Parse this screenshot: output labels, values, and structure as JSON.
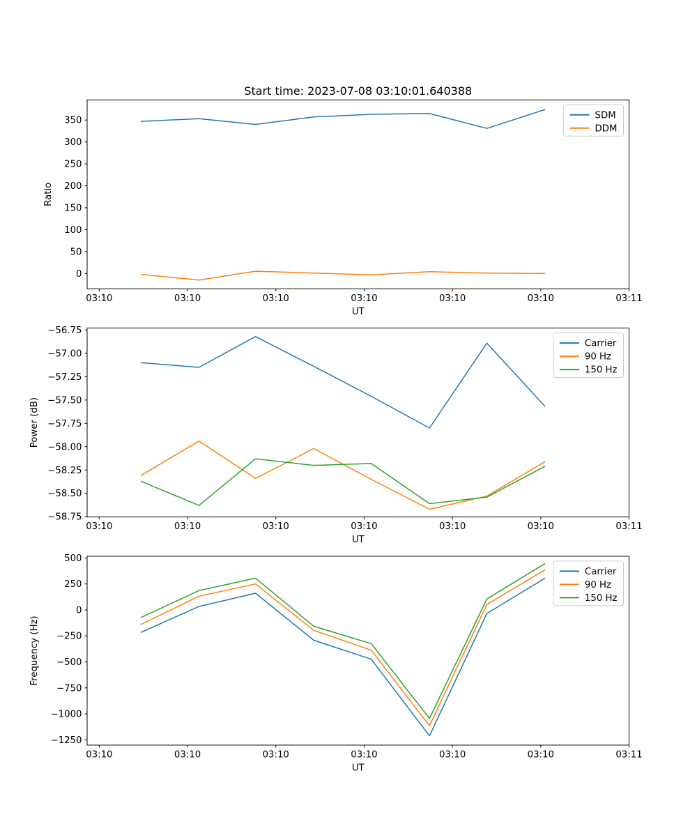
{
  "figure": {
    "title": "Start time: 2023-07-08 03:10:01.640388",
    "background_color": "#ffffff",
    "text_color": "#000000",
    "spine_color": "#000000",
    "legend_border_color": "#cccccc",
    "palette": {
      "blue": "#1f77b4",
      "orange": "#ff7f0e",
      "green": "#2ca02c"
    }
  },
  "chart_data": [
    {
      "type": "line",
      "key": "ratio-plot",
      "title": "Start time: 2023-07-08 03:10:01.640388",
      "xlabel": "UT",
      "ylabel": "Ratio",
      "x": [
        4.7,
        11.3,
        17.7,
        24.3,
        30.8,
        37.4,
        43.9,
        50.5
      ],
      "x_unit": "seconds after 03:10:00",
      "xlim": [
        -1.37,
        60
      ],
      "ylim": [
        -35,
        396
      ],
      "xticks": [
        0,
        10,
        20,
        30,
        40,
        50,
        60
      ],
      "xtick_labels": [
        "03:10",
        "03:10",
        "03:10",
        "03:10",
        "03:10",
        "03:10",
        "03:11"
      ],
      "yticks": [
        0,
        50,
        100,
        150,
        200,
        250,
        300,
        350
      ],
      "ytick_labels": [
        "0",
        "50",
        "100",
        "150",
        "200",
        "250",
        "300",
        "350"
      ],
      "grid": false,
      "legend_position": "upper right",
      "series": [
        {
          "name": "SDM",
          "color": "#1f77b4",
          "values": [
            347,
            353,
            340,
            357,
            363,
            365,
            331,
            374
          ]
        },
        {
          "name": "DDM",
          "color": "#ff7f0e",
          "values": [
            -2,
            -15,
            5,
            1,
            -3,
            4,
            1,
            0
          ]
        }
      ]
    },
    {
      "type": "line",
      "key": "power-plot",
      "title": "",
      "xlabel": "UT",
      "ylabel": "Power (dB)",
      "x": [
        4.7,
        11.3,
        17.7,
        24.3,
        30.8,
        37.4,
        43.9,
        50.5
      ],
      "x_unit": "seconds after 03:10:00",
      "xlim": [
        -1.37,
        60
      ],
      "ylim": [
        -58.753,
        -56.729
      ],
      "xticks": [
        0,
        10,
        20,
        30,
        40,
        50,
        60
      ],
      "xtick_labels": [
        "03:10",
        "03:10",
        "03:10",
        "03:10",
        "03:10",
        "03:10",
        "03:11"
      ],
      "yticks": [
        -58.75,
        -58.5,
        -58.25,
        -58.0,
        -57.75,
        -57.5,
        -57.25,
        -57.0,
        -56.75
      ],
      "ytick_labels": [
        "−58.75",
        "−58.50",
        "−58.25",
        "−58.00",
        "−57.75",
        "−57.50",
        "−57.25",
        "−57.00",
        "−56.75"
      ],
      "grid": false,
      "legend_position": "upper right",
      "series": [
        {
          "name": "Carrier",
          "color": "#1f77b4",
          "values": [
            -57.1,
            -57.15,
            -56.82,
            -57.14,
            -57.46,
            -57.8,
            -56.89,
            -57.57
          ]
        },
        {
          "name": "90 Hz",
          "color": "#ff7f0e",
          "values": [
            -58.31,
            -57.94,
            -58.34,
            -58.02,
            -58.35,
            -58.67,
            -58.53,
            -58.16
          ]
        },
        {
          "name": "150 Hz",
          "color": "#2ca02c",
          "values": [
            -58.37,
            -58.63,
            -58.13,
            -58.2,
            -58.18,
            -58.61,
            -58.54,
            -58.21
          ]
        }
      ]
    },
    {
      "type": "line",
      "key": "frequency-plot",
      "title": "",
      "xlabel": "UT",
      "ylabel": "Frequency (Hz)",
      "x": [
        4.7,
        11.3,
        17.7,
        24.3,
        30.8,
        37.4,
        43.9,
        50.5
      ],
      "x_unit": "seconds after 03:10:00",
      "xlim": [
        -1.37,
        60
      ],
      "ylim": [
        -1301,
        517
      ],
      "xticks": [
        0,
        10,
        20,
        30,
        40,
        50,
        60
      ],
      "xtick_labels": [
        "03:10",
        "03:10",
        "03:10",
        "03:10",
        "03:10",
        "03:10",
        "03:11"
      ],
      "yticks": [
        -1250,
        -1000,
        -750,
        -500,
        -250,
        0,
        250,
        500
      ],
      "ytick_labels": [
        "−1250",
        "−1000",
        "−750",
        "−500",
        "−250",
        "0",
        "250",
        "500"
      ],
      "grid": false,
      "legend_position": "upper right",
      "series": [
        {
          "name": "Carrier",
          "color": "#1f77b4",
          "values": [
            -217,
            33,
            161,
            -292,
            -474,
            -1212,
            -34,
            306
          ]
        },
        {
          "name": "90 Hz",
          "color": "#ff7f0e",
          "values": [
            -141,
            132,
            250,
            -197,
            -387,
            -1114,
            52,
            387
          ]
        },
        {
          "name": "150 Hz",
          "color": "#2ca02c",
          "values": [
            -74,
            186,
            306,
            -157,
            -324,
            -1045,
            105,
            447
          ]
        }
      ]
    }
  ]
}
